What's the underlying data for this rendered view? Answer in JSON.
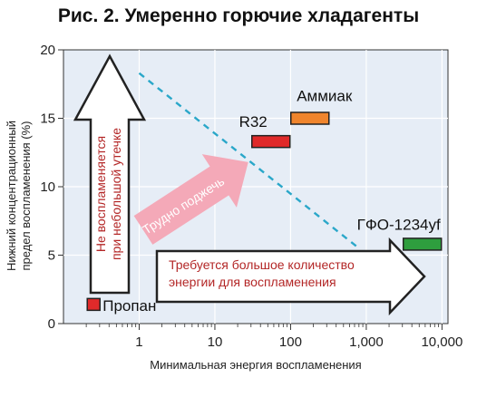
{
  "title": "Рис. 2. Умеренно горючие хладагенты",
  "colors": {
    "plot_bg": "#e6edf6",
    "dashed_line": "#2aa7c9",
    "arrow_text": "#b32626",
    "pink_arrow": "#f4a9b8",
    "pink_text": "#ffffff"
  },
  "chart_data": {
    "type": "scatter",
    "title": "Рис. 2. Умеренно горючие хладагенты",
    "xlabel": "Минимальная энергия воспламенения",
    "ylabel": "Нижний  концентрационный предел воспламенения (%)",
    "ylabel_line1": "Нижний  концентрационный",
    "ylabel_line2": "предел воспламенения (%)",
    "x_scale": "log",
    "xlim": [
      0.1,
      12000
    ],
    "ylim": [
      0,
      20
    ],
    "x_ticks": [
      1,
      10,
      100,
      1000,
      10000
    ],
    "x_tick_labels": [
      "1",
      "10",
      "100",
      "1,000",
      "10,000"
    ],
    "y_ticks": [
      0,
      5,
      10,
      15,
      20
    ],
    "y_tick_labels": [
      "0",
      "5",
      "10",
      "15",
      "20"
    ],
    "grid": true,
    "points": [
      {
        "label": "Пропан",
        "x": 0.25,
        "y": 1.4,
        "color": "#e02a2a"
      },
      {
        "label": "R32",
        "x": 55,
        "y": 13.3,
        "color": "#e02a2a"
      },
      {
        "label": "Аммиак",
        "x": 180,
        "y": 15.0,
        "color": "#f0852d"
      },
      {
        "label": "ГФО-1234yf",
        "x": 5500,
        "y": 5.8,
        "color": "#2e9e3e"
      }
    ],
    "threshold_line": {
      "x": [
        1,
        800
      ],
      "y": [
        18.3,
        5.5
      ],
      "style": "dashed"
    },
    "annotations": {
      "vertical_arrow": [
        "Не воспламеняется",
        "при небольшой утечке"
      ],
      "diagonal_arrow": "Трудно поджечь",
      "horizontal_arrow": [
        "Требуется большое количество",
        "энергии для воспламенения"
      ]
    }
  }
}
